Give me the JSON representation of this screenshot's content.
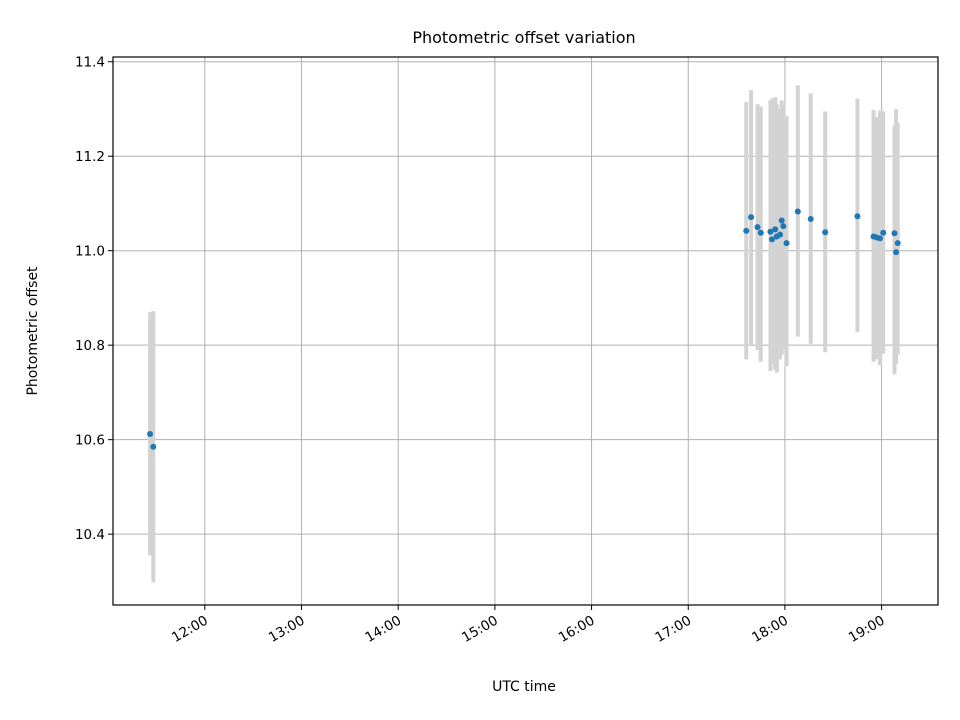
{
  "chart_data": {
    "type": "scatter",
    "title": "Photometric offset variation",
    "xlabel": "UTC time",
    "ylabel": "Photometric offset",
    "xlim": [
      "11:03",
      "19:35"
    ],
    "ylim": [
      10.25,
      11.41
    ],
    "x_ticks": [
      "12:00",
      "13:00",
      "14:00",
      "15:00",
      "16:00",
      "17:00",
      "18:00",
      "19:00"
    ],
    "y_ticks": [
      "10.4",
      "10.6",
      "10.8",
      "11.0",
      "11.2",
      "11.4"
    ],
    "grid": true,
    "series": [
      {
        "style": "errorbar",
        "color": "#1f77b4",
        "error_color": "#d3d3d3",
        "points": [
          {
            "x": "11:26",
            "y": 10.612,
            "lo": 10.355,
            "hi": 10.87
          },
          {
            "x": "11:28",
            "y": 10.585,
            "lo": 10.298,
            "hi": 10.872
          },
          {
            "x": "17:36",
            "y": 11.042,
            "lo": 10.77,
            "hi": 11.315
          },
          {
            "x": "17:39",
            "y": 11.071,
            "lo": 10.8,
            "hi": 11.34
          },
          {
            "x": "17:43",
            "y": 11.05,
            "lo": 10.79,
            "hi": 11.31
          },
          {
            "x": "17:45",
            "y": 11.038,
            "lo": 10.765,
            "hi": 11.305
          },
          {
            "x": "17:51",
            "y": 11.04,
            "lo": 10.745,
            "hi": 11.318
          },
          {
            "x": "17:52",
            "y": 11.024,
            "lo": 10.76,
            "hi": 11.322
          },
          {
            "x": "17:54",
            "y": 11.045,
            "lo": 10.748,
            "hi": 11.325
          },
          {
            "x": "17:55",
            "y": 11.03,
            "lo": 10.742,
            "hi": 11.31
          },
          {
            "x": "17:57",
            "y": 11.034,
            "lo": 10.77,
            "hi": 11.3
          },
          {
            "x": "17:58",
            "y": 11.064,
            "lo": 10.78,
            "hi": 11.318
          },
          {
            "x": "17:59",
            "y": 11.052,
            "lo": 10.79,
            "hi": 11.31
          },
          {
            "x": "18:01",
            "y": 11.016,
            "lo": 10.755,
            "hi": 11.285
          },
          {
            "x": "18:08",
            "y": 11.083,
            "lo": 10.818,
            "hi": 11.35
          },
          {
            "x": "18:16",
            "y": 11.067,
            "lo": 10.803,
            "hi": 11.333
          },
          {
            "x": "18:25",
            "y": 11.039,
            "lo": 10.785,
            "hi": 11.295
          },
          {
            "x": "18:45",
            "y": 11.073,
            "lo": 10.828,
            "hi": 11.322
          },
          {
            "x": "18:55",
            "y": 11.03,
            "lo": 10.765,
            "hi": 11.298
          },
          {
            "x": "18:57",
            "y": 11.028,
            "lo": 10.77,
            "hi": 11.283
          },
          {
            "x": "18:59",
            "y": 11.026,
            "lo": 10.758,
            "hi": 11.297
          },
          {
            "x": "19:01",
            "y": 11.038,
            "lo": 10.782,
            "hi": 11.295
          },
          {
            "x": "19:08",
            "y": 11.037,
            "lo": 10.738,
            "hi": 11.265
          },
          {
            "x": "19:09",
            "y": 10.997,
            "lo": 10.76,
            "hi": 11.3
          },
          {
            "x": "19:10",
            "y": 11.016,
            "lo": 10.78,
            "hi": 11.27
          }
        ]
      }
    ]
  }
}
